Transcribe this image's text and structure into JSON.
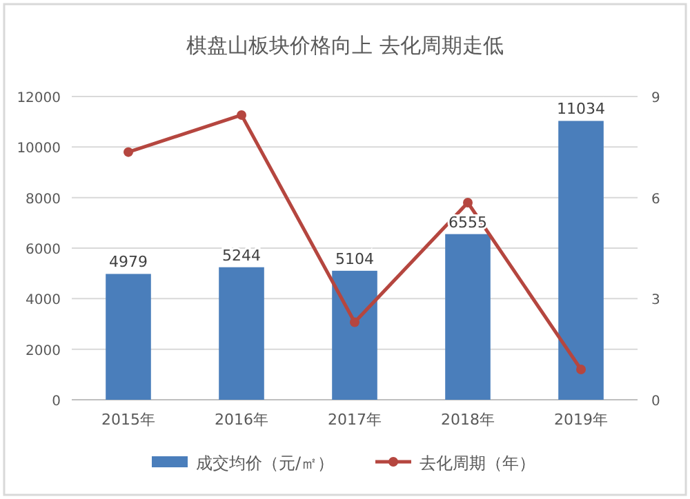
{
  "chart_data": {
    "type": "bar",
    "title": "棋盘山板块价格向上 去化周期走低",
    "categories": [
      "2015年",
      "2016年",
      "2017年",
      "2018年",
      "2019年"
    ],
    "series": [
      {
        "name": "成交均价（元/㎡）",
        "color": "#4a7ebb",
        "values": [
          4979,
          5244,
          5104,
          6555,
          11034
        ],
        "value_labels": [
          "4979",
          "5244",
          "5104",
          "6555",
          "11034"
        ]
      },
      {
        "name": "去化周期（年）",
        "type": "line",
        "axis": "y2",
        "color": "#b5463f",
        "marker": "circle",
        "values": [
          7.35,
          8.45,
          2.3,
          5.85,
          0.9
        ]
      }
    ],
    "ylim": [
      0,
      12000
    ],
    "yticks": [
      0,
      2000,
      4000,
      6000,
      8000,
      10000,
      12000
    ],
    "y2lim": [
      0,
      9
    ],
    "y2ticks": [
      0,
      3,
      6,
      9
    ],
    "grid": "y",
    "legend": "bottom"
  }
}
